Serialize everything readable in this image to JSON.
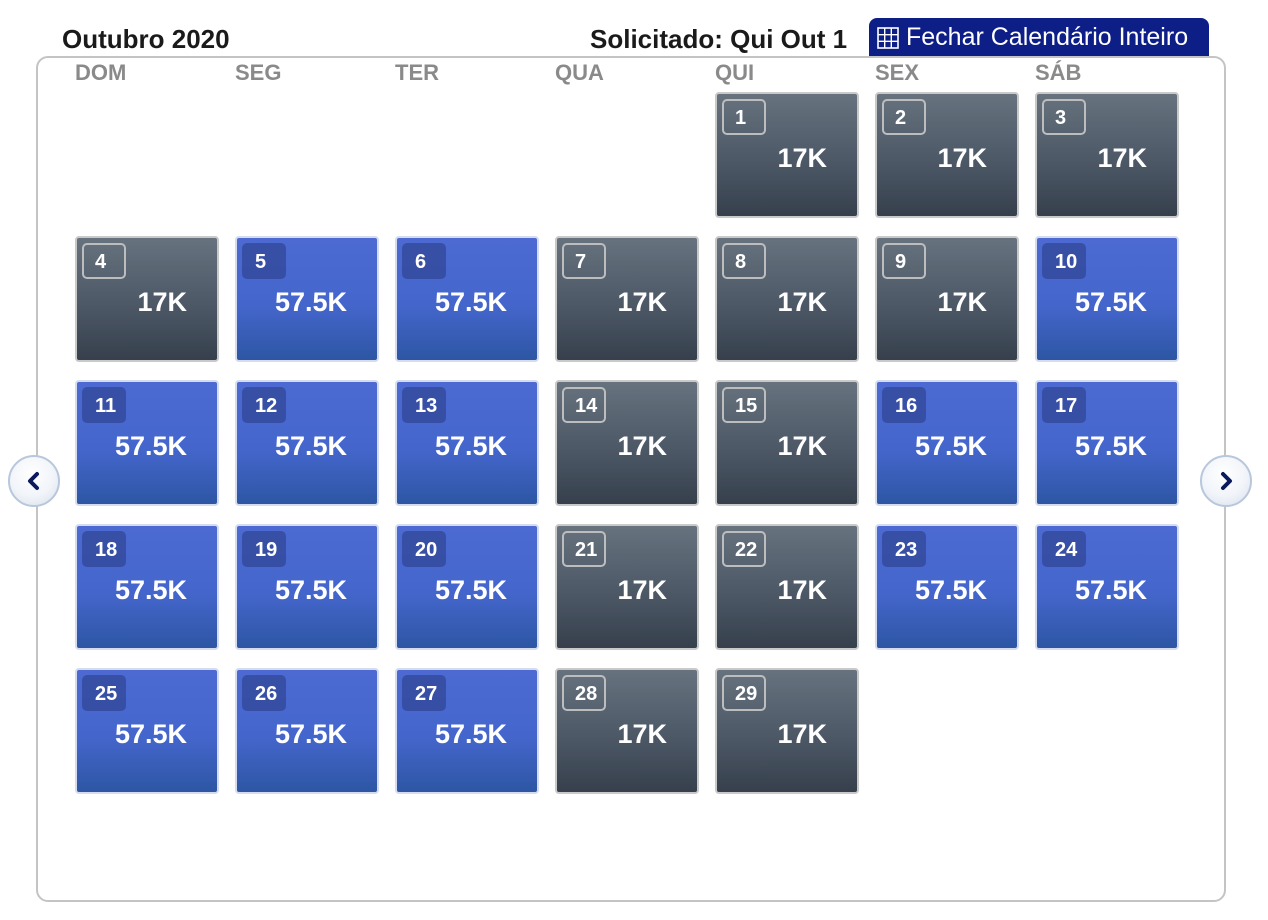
{
  "header": {
    "month_title": "Outubro 2020",
    "requested_label": "Solicitado: Qui Out 1",
    "close_button_label": "Fechar Calendário Inteiro"
  },
  "weekdays": [
    "DOM",
    "SEG",
    "TER",
    "QUA",
    "QUI",
    "SEX",
    "SÁB"
  ],
  "colors": {
    "low_fare_cell": "#4d5866",
    "high_fare_cell": "#4466cc",
    "button_navy": "#0d1e86"
  },
  "icons": {
    "close_button_icon": "grid-icon",
    "prev": "chevron-left-icon",
    "next": "chevron-right-icon"
  },
  "days": [
    {
      "day": "1",
      "price": "17K",
      "tier": "low"
    },
    {
      "day": "2",
      "price": "17K",
      "tier": "low"
    },
    {
      "day": "3",
      "price": "17K",
      "tier": "low"
    },
    {
      "day": "4",
      "price": "17K",
      "tier": "low"
    },
    {
      "day": "5",
      "price": "57.5K",
      "tier": "high"
    },
    {
      "day": "6",
      "price": "57.5K",
      "tier": "high"
    },
    {
      "day": "7",
      "price": "17K",
      "tier": "low"
    },
    {
      "day": "8",
      "price": "17K",
      "tier": "low"
    },
    {
      "day": "9",
      "price": "17K",
      "tier": "low"
    },
    {
      "day": "10",
      "price": "57.5K",
      "tier": "high"
    },
    {
      "day": "11",
      "price": "57.5K",
      "tier": "high"
    },
    {
      "day": "12",
      "price": "57.5K",
      "tier": "high"
    },
    {
      "day": "13",
      "price": "57.5K",
      "tier": "high"
    },
    {
      "day": "14",
      "price": "17K",
      "tier": "low"
    },
    {
      "day": "15",
      "price": "17K",
      "tier": "low"
    },
    {
      "day": "16",
      "price": "57.5K",
      "tier": "high"
    },
    {
      "day": "17",
      "price": "57.5K",
      "tier": "high"
    },
    {
      "day": "18",
      "price": "57.5K",
      "tier": "high"
    },
    {
      "day": "19",
      "price": "57.5K",
      "tier": "high"
    },
    {
      "day": "20",
      "price": "57.5K",
      "tier": "high"
    },
    {
      "day": "21",
      "price": "17K",
      "tier": "low"
    },
    {
      "day": "22",
      "price": "17K",
      "tier": "low"
    },
    {
      "day": "23",
      "price": "57.5K",
      "tier": "high"
    },
    {
      "day": "24",
      "price": "57.5K",
      "tier": "high"
    },
    {
      "day": "25",
      "price": "57.5K",
      "tier": "high"
    },
    {
      "day": "26",
      "price": "57.5K",
      "tier": "high"
    },
    {
      "day": "27",
      "price": "57.5K",
      "tier": "high"
    },
    {
      "day": "28",
      "price": "17K",
      "tier": "low"
    },
    {
      "day": "29",
      "price": "17K",
      "tier": "low"
    }
  ]
}
